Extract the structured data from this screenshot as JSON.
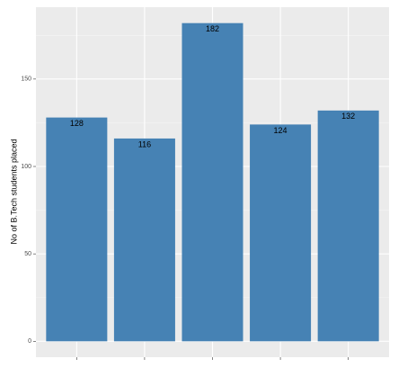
{
  "chart_data": {
    "type": "bar",
    "y_label": "No of B.Tech students placed",
    "categories": [
      null,
      null,
      null,
      null,
      null
    ],
    "values": [
      128,
      116,
      182,
      124,
      132
    ],
    "color": "#4682b4",
    "ylim": [
      -9.1,
      191.1
    ],
    "yticks": [
      0,
      50,
      100,
      150
    ],
    "grid": true
  }
}
